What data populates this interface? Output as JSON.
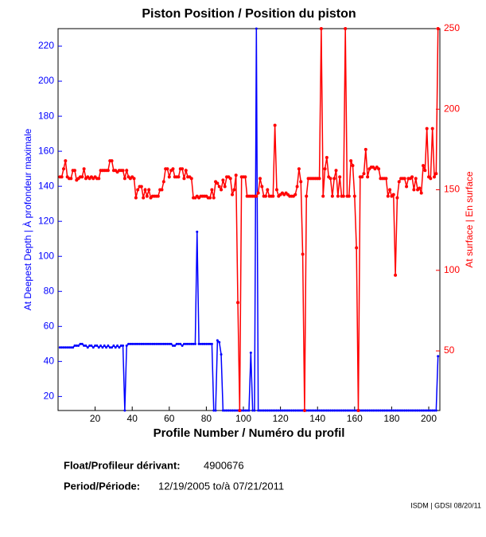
{
  "chart_data": {
    "type": "line",
    "title": "Piston Position / Position du piston",
    "xlabel": "Profile Number / Numéro du profil",
    "ylabel": "At Deepest Depth | À profondeur maximale",
    "y2label": "At surface | En surface",
    "float_label": "Float/Profileur dérivant:",
    "float_id": "4900676",
    "period_label": "Period/Période:",
    "period": "12/19/2005 to/à 07/21/2011",
    "credit": "ISDM | GDSI 08/20/11",
    "xlim": [
      0,
      206
    ],
    "xticks": [
      20,
      40,
      60,
      80,
      100,
      120,
      140,
      160,
      180,
      200
    ],
    "ylim": [
      12,
      230
    ],
    "yticks": [
      20,
      40,
      60,
      80,
      100,
      120,
      140,
      160,
      180,
      200,
      220
    ],
    "y2lim": [
      13,
      250
    ],
    "y2ticks": [
      50,
      100,
      150,
      200,
      250
    ],
    "x": [
      1,
      2,
      3,
      4,
      5,
      6,
      7,
      8,
      9,
      10,
      11,
      12,
      13,
      14,
      15,
      16,
      17,
      18,
      19,
      20,
      21,
      22,
      23,
      24,
      25,
      26,
      27,
      28,
      29,
      30,
      31,
      32,
      33,
      34,
      35,
      36,
      37,
      38,
      39,
      40,
      41,
      42,
      43,
      44,
      45,
      46,
      47,
      48,
      49,
      50,
      51,
      52,
      53,
      54,
      55,
      56,
      57,
      58,
      59,
      60,
      61,
      62,
      63,
      64,
      65,
      66,
      67,
      68,
      69,
      70,
      71,
      72,
      73,
      74,
      75,
      76,
      77,
      78,
      79,
      80,
      81,
      82,
      83,
      84,
      85,
      86,
      87,
      88,
      89,
      90,
      91,
      92,
      93,
      94,
      95,
      96,
      97,
      98,
      99,
      100,
      101,
      102,
      103,
      104,
      105,
      106,
      107,
      108,
      109,
      110,
      111,
      112,
      113,
      114,
      115,
      116,
      117,
      118,
      119,
      120,
      121,
      122,
      123,
      124,
      125,
      126,
      127,
      128,
      129,
      130,
      131,
      132,
      133,
      134,
      135,
      136,
      137,
      138,
      139,
      140,
      141,
      142,
      143,
      144,
      145,
      146,
      147,
      148,
      149,
      150,
      151,
      152,
      153,
      154,
      155,
      156,
      157,
      158,
      159,
      160,
      161,
      162,
      163,
      164,
      165,
      166,
      167,
      168,
      169,
      170,
      171,
      172,
      173,
      174,
      175,
      176,
      177,
      178,
      179,
      180,
      181,
      182,
      183,
      184,
      185,
      186,
      187,
      188,
      189,
      190,
      191,
      192,
      193,
      194,
      195,
      196,
      197,
      198,
      199,
      200,
      201,
      202,
      203,
      204,
      205
    ],
    "series": [
      {
        "color": "#0000ff",
        "axis": "y",
        "values": [
          48,
          48,
          48,
          48,
          48,
          48,
          48,
          48,
          49,
          49,
          49,
          50,
          50,
          49,
          49,
          48,
          49,
          49,
          48,
          49,
          49,
          48,
          49,
          48,
          49,
          48,
          49,
          48,
          48,
          49,
          48,
          49,
          48,
          49,
          49,
          12,
          49,
          50,
          50,
          50,
          50,
          50,
          50,
          50,
          50,
          50,
          50,
          50,
          50,
          50,
          50,
          50,
          50,
          50,
          50,
          50,
          50,
          50,
          50,
          50,
          50,
          49,
          49,
          50,
          50,
          50,
          49,
          50,
          50,
          50,
          50,
          50,
          50,
          50,
          114,
          50,
          50,
          50,
          50,
          50,
          50,
          50,
          50,
          12,
          12,
          52,
          51,
          44,
          12,
          12,
          12,
          12,
          12,
          12,
          12,
          12,
          12,
          12,
          12,
          12,
          12,
          12,
          12,
          45,
          12,
          12,
          230,
          12,
          12,
          12,
          12,
          12,
          12,
          12,
          12,
          12,
          12,
          12,
          12,
          12,
          12,
          12,
          12,
          12,
          12,
          12,
          12,
          12,
          12,
          12,
          12,
          12,
          12,
          12,
          12,
          12,
          12,
          12,
          12,
          12,
          12,
          12,
          12,
          12,
          12,
          12,
          12,
          12,
          12,
          12,
          12,
          12,
          12,
          12,
          12,
          12,
          12,
          12,
          12,
          12,
          12,
          12,
          12,
          12,
          12,
          12,
          12,
          12,
          12,
          12,
          12,
          12,
          12,
          12,
          12,
          12,
          12,
          12,
          12,
          12,
          12,
          12,
          12,
          12,
          12,
          12,
          12,
          12,
          12,
          12,
          12,
          12,
          12,
          12,
          12,
          12,
          12,
          12,
          12,
          12,
          12,
          12,
          12,
          12,
          43
        ]
      },
      {
        "color": "#ff0000",
        "axis": "y2",
        "values": [
          158,
          158,
          163,
          168,
          158,
          157,
          157,
          162,
          162,
          156,
          157,
          158,
          158,
          163,
          157,
          158,
          157,
          158,
          157,
          158,
          157,
          157,
          162,
          162,
          162,
          162,
          162,
          168,
          168,
          162,
          162,
          161,
          162,
          162,
          162,
          157,
          162,
          158,
          157,
          158,
          157,
          145,
          150,
          152,
          152,
          145,
          150,
          146,
          150,
          145,
          146,
          146,
          146,
          146,
          150,
          150,
          155,
          163,
          163,
          158,
          162,
          163,
          158,
          158,
          158,
          163,
          163,
          157,
          162,
          158,
          158,
          157,
          145,
          145,
          146,
          145,
          146,
          146,
          146,
          146,
          145,
          145,
          150,
          145,
          155,
          154,
          152,
          150,
          156,
          152,
          158,
          158,
          157,
          147,
          150,
          159,
          80,
          13,
          158,
          158,
          158,
          146,
          146,
          146,
          146,
          146,
          146,
          148,
          157,
          152,
          146,
          146,
          150,
          146,
          146,
          146,
          190,
          150,
          146,
          147,
          148,
          147,
          148,
          147,
          146,
          146,
          146,
          147,
          152,
          163,
          155,
          110,
          13,
          146,
          157,
          157,
          157,
          157,
          157,
          157,
          157,
          250,
          146,
          163,
          170,
          158,
          157,
          146,
          157,
          162,
          146,
          158,
          146,
          146,
          250,
          146,
          146,
          168,
          165,
          146,
          114,
          13,
          158,
          158,
          160,
          175,
          158,
          163,
          164,
          164,
          163,
          164,
          163,
          157,
          157,
          157,
          157,
          146,
          150,
          146,
          147,
          97,
          145,
          155,
          157,
          157,
          157,
          152,
          157,
          157,
          158,
          150,
          157,
          150,
          151,
          148,
          165,
          162,
          188,
          158,
          157,
          188,
          158,
          160,
          250
        ]
      }
    ]
  }
}
